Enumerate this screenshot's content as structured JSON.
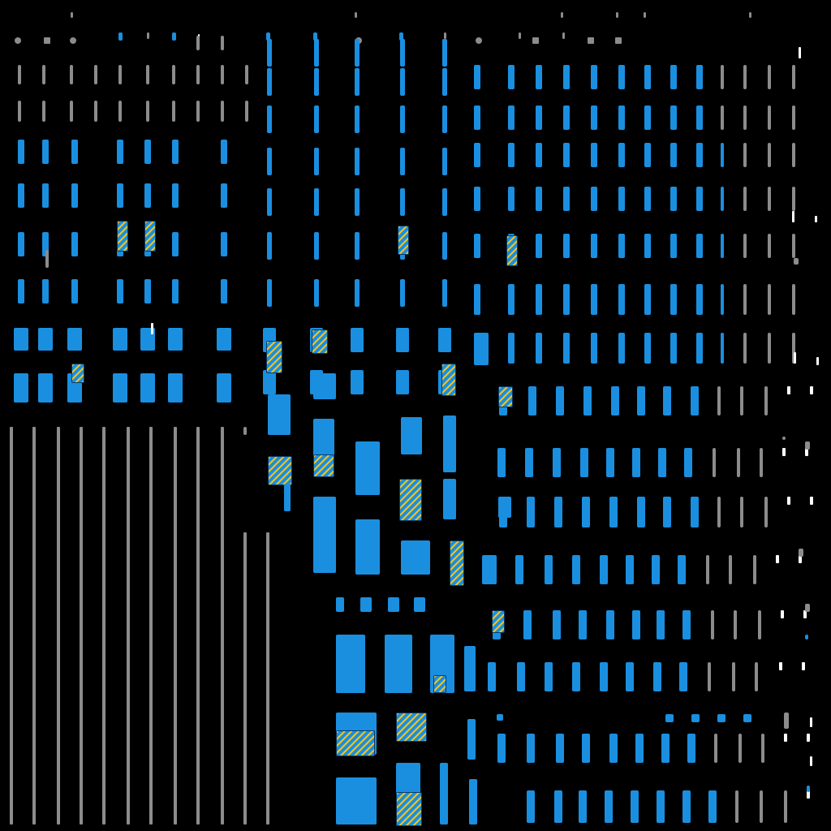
{
  "colors": {
    "background": "#000000",
    "blue": "#1a8fe0",
    "gray": "#8c8c8c",
    "white": "#ffffff",
    "yellow": "#f2c21b"
  },
  "tile_kinds": [
    "blue-bar",
    "gray-bar",
    "white-bar",
    "dot",
    "square",
    "line",
    "art-fragment"
  ]
}
